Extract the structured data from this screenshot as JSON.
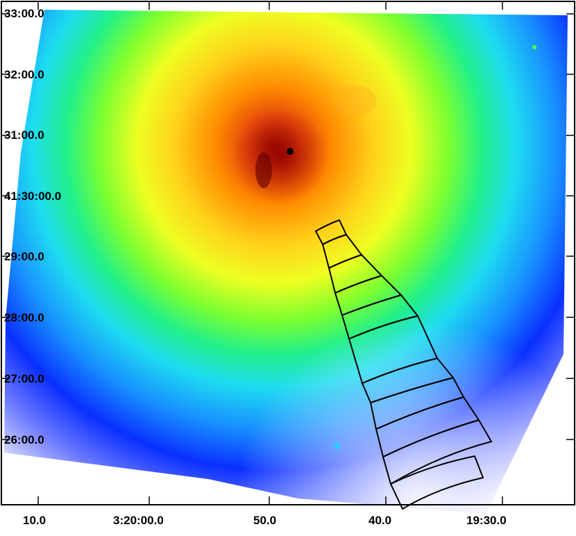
{
  "image": {
    "description_free": true,
    "colormap": [
      "#fffff5",
      "#c8c8ff",
      "#0a2aff",
      "#18a8ff",
      "#22f0f0",
      "#38ff38",
      "#f0ff20",
      "#ffb400",
      "#ff5a10",
      "#b40000"
    ],
    "region_outline_color": "#000000",
    "region_count": 12
  },
  "axes": {
    "dec_labels": [
      "33:00.0",
      "32:00.0",
      "31:00.0",
      "41:30:00.0",
      "29:00.0",
      "28:00.0",
      "27:00.0",
      "26:00.0"
    ],
    "ra_labels": [
      "10.0",
      "3:20:00.0",
      "50.0",
      "40.0",
      "19:30.0"
    ]
  }
}
